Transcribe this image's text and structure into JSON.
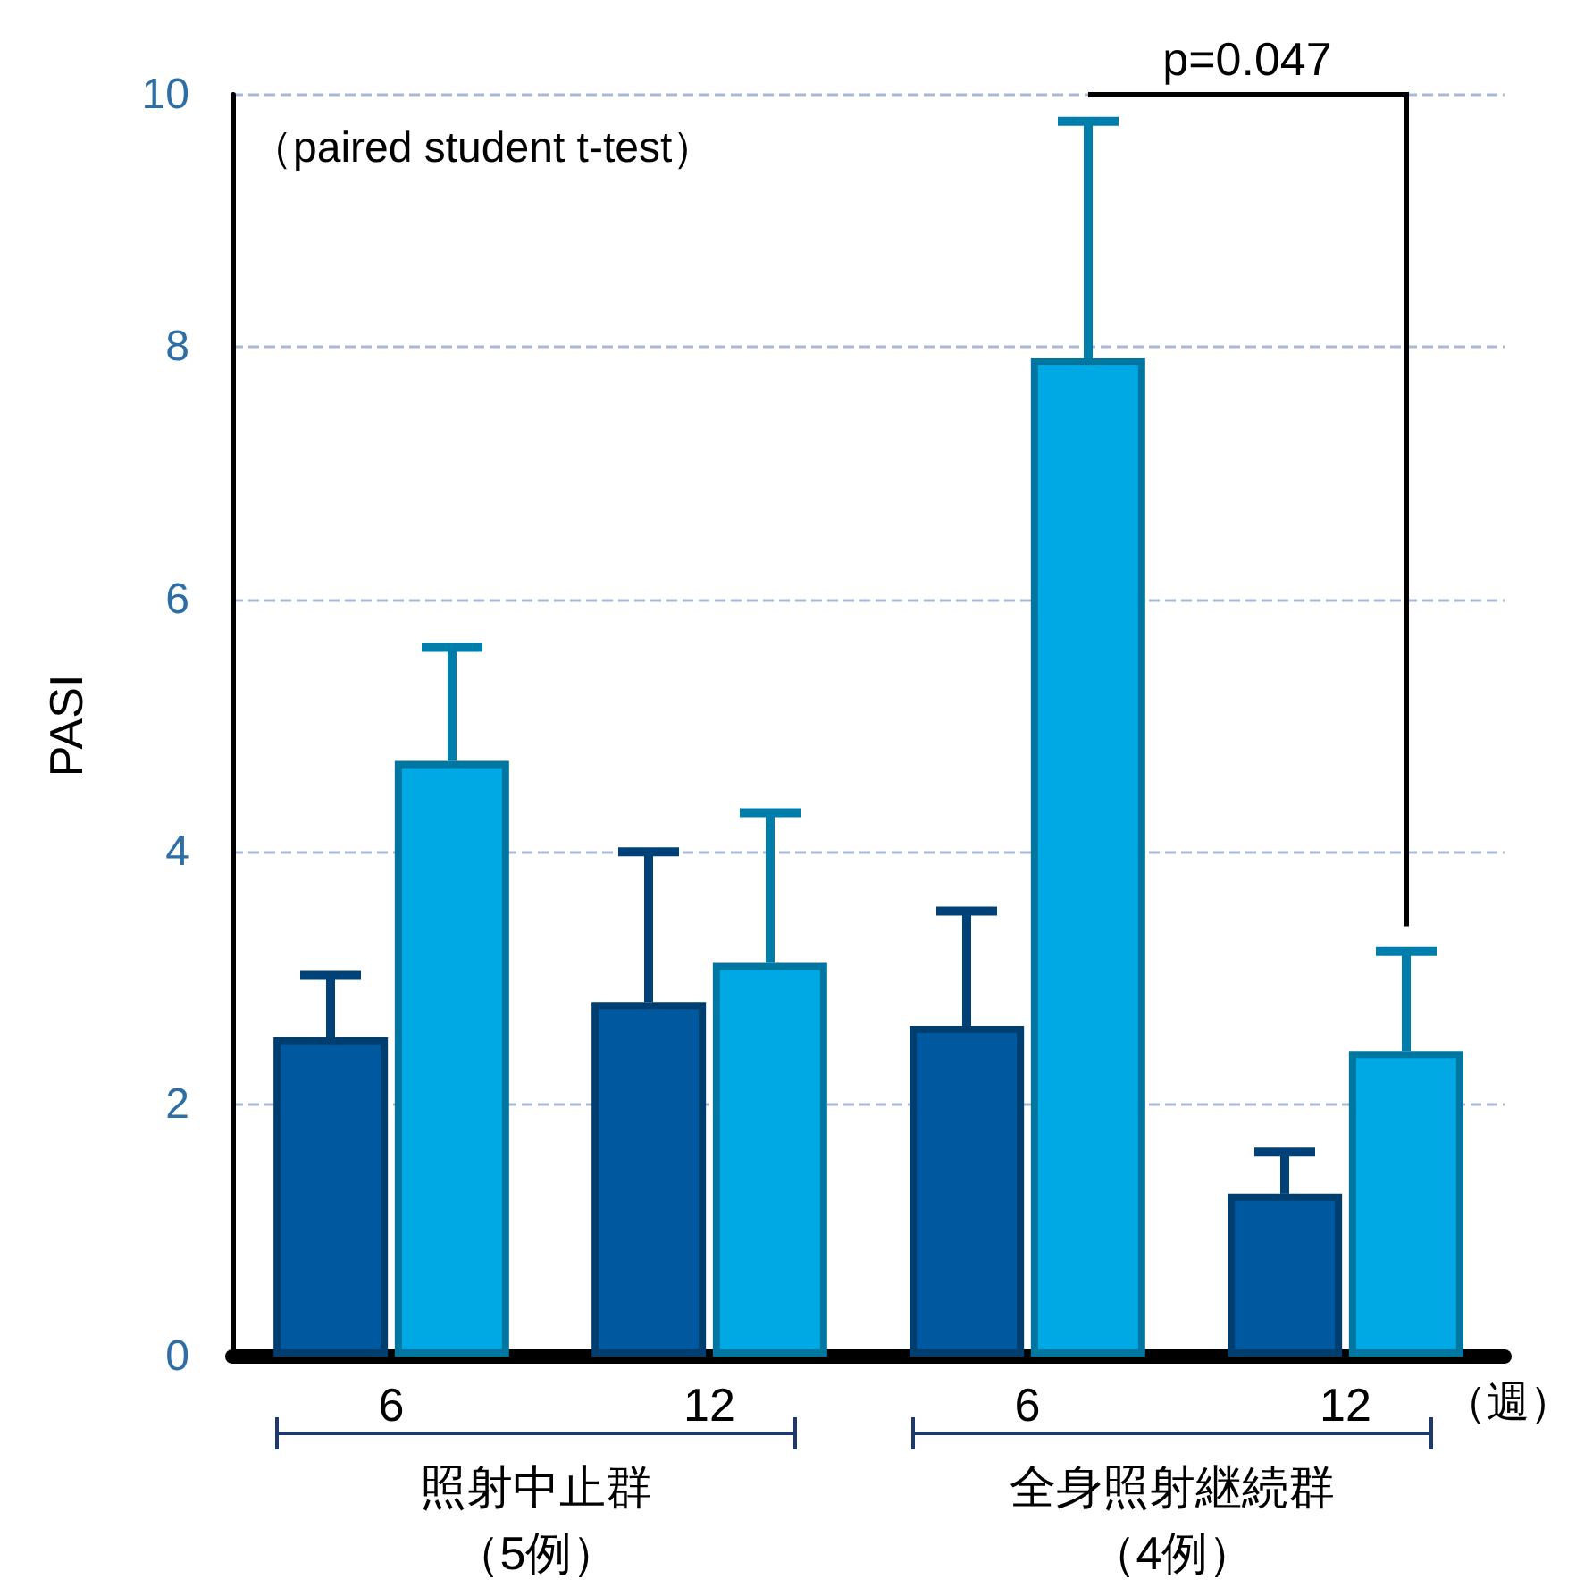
{
  "chart_data": {
    "type": "bar",
    "ylabel": "PASI",
    "categories": [
      "6",
      "12",
      "6",
      "12"
    ],
    "series": [
      {
        "color": "#00589f",
        "values": [
          2.53,
          2.81,
          2.62,
          1.29
        ],
        "errors": [
          [
            2.53,
            3.02
          ],
          [
            2.81,
            4.0
          ],
          [
            2.62,
            3.53
          ],
          [
            1.29,
            1.62
          ]
        ]
      },
      {
        "color": "#00a8e4",
        "values": [
          4.72,
          3.12,
          7.91,
          2.42
        ],
        "errors": [
          [
            4.72,
            5.62
          ],
          [
            3.12,
            4.31
          ],
          [
            7.91,
            9.79
          ],
          [
            2.42,
            3.21
          ]
        ]
      }
    ],
    "ylim": [
      0,
      10
    ],
    "yticks": [
      0,
      2,
      4,
      6,
      8,
      10
    ],
    "grid": "y",
    "annotations": [
      "（paired student t-test）",
      "p=0.047",
      "（週）",
      "照射中止群",
      "（5例）",
      "全身照射継続群",
      "（4例）"
    ]
  }
}
